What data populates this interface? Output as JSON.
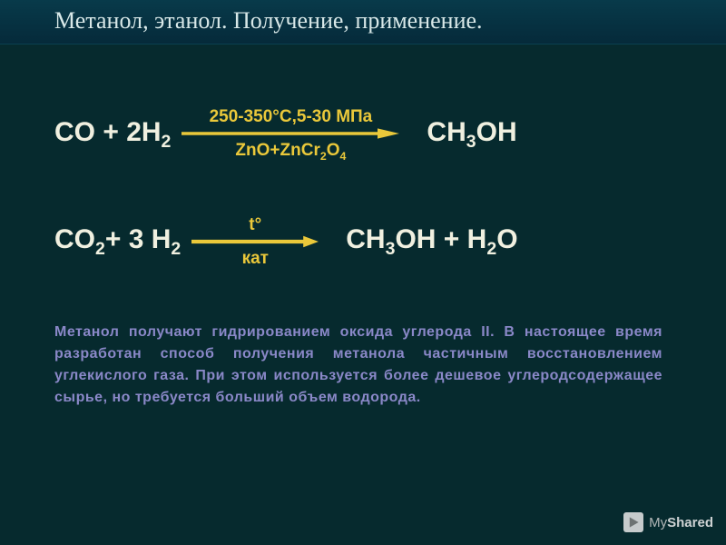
{
  "colors": {
    "background": "#062a2e",
    "title_bar_top": "#083a4a",
    "title_bar_bottom": "#052a3a",
    "title_text": "#d8e8e8",
    "equation_text": "#f0f0e0",
    "condition_text": "#eac83a",
    "arrow_stroke": "#eac83a",
    "paragraph_text": "#8a88c8"
  },
  "typography": {
    "title_fontsize": 26,
    "title_family": "Times New Roman",
    "equation_fontsize": 30,
    "condition_fontsize": 19,
    "paragraph_fontsize": 16
  },
  "title": "Метанол, этанол. Получение, применение.",
  "equation1": {
    "left_html": "CO + 2H<sub>2</sub>",
    "top_condition_html": "250-350°C,5-30 МПа",
    "bottom_condition_html": "ZnO+ZnCr<sub>2</sub>O<sub>4</sub>",
    "right_html": "CH<sub>3</sub>OH",
    "arrow_min_width": 240
  },
  "equation2": {
    "left_html": "CO<sub>2</sub>+ 3 H<sub>2</sub>",
    "top_condition_html": "t°",
    "bottom_condition_html": "кат",
    "right_html": "CH<sub>3</sub>OH + H<sub>2</sub>O",
    "arrow_min_width": 90
  },
  "paragraph": "Метанол получают гидрированием оксида углерода II. В настоящее время разработан способ получения метанола частичным восстановлением углекислого газа. При этом используется более дешевое углеродсодержащее сырье, но требуется больший объем водорода.",
  "watermark": {
    "prefix": "My",
    "suffix": "Shared"
  }
}
